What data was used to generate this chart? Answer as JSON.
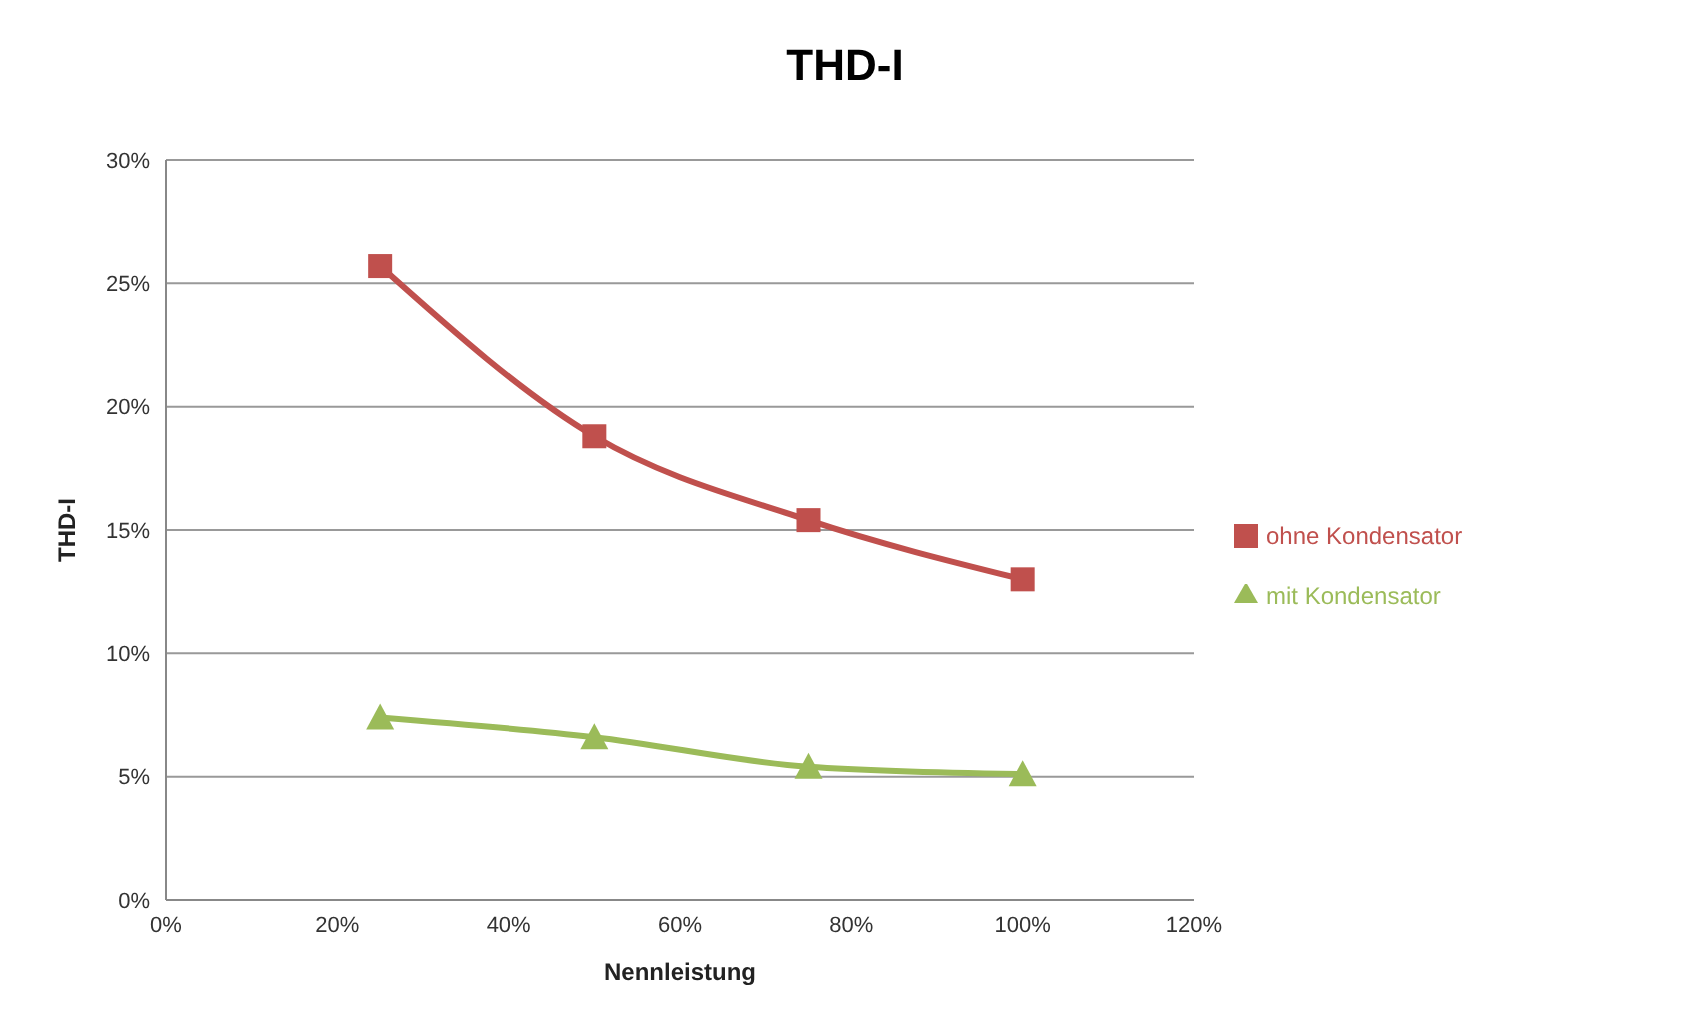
{
  "chart_data": {
    "type": "line",
    "title": "THD-I",
    "xlabel": "Nennleistung",
    "ylabel": "THD-I",
    "x": [
      25,
      50,
      75,
      100
    ],
    "series": [
      {
        "name": "ohne Kondensator",
        "color": "#c0504d",
        "marker": "square",
        "values": [
          25.7,
          18.8,
          15.4,
          13.0
        ]
      },
      {
        "name": "mit Kondensator",
        "color": "#9bbb59",
        "marker": "triangle",
        "values": [
          7.4,
          6.6,
          5.4,
          5.1
        ]
      }
    ],
    "xlim": [
      0,
      120
    ],
    "xticks": [
      {
        "value": 0,
        "label": "0%"
      },
      {
        "value": 20,
        "label": "20%"
      },
      {
        "value": 40,
        "label": "40%"
      },
      {
        "value": 60,
        "label": "60%"
      },
      {
        "value": 80,
        "label": "80%"
      },
      {
        "value": 100,
        "label": "100%"
      },
      {
        "value": 120,
        "label": "120%"
      }
    ],
    "ylim": [
      0,
      30
    ],
    "yticks": [
      {
        "value": 0,
        "label": "0%"
      },
      {
        "value": 5,
        "label": "5%"
      },
      {
        "value": 10,
        "label": "10%"
      },
      {
        "value": 15,
        "label": "15%"
      },
      {
        "value": 20,
        "label": "20%"
      },
      {
        "value": 25,
        "label": "25%"
      },
      {
        "value": 30,
        "label": "30%"
      }
    ],
    "grid": "y",
    "legend": "right"
  }
}
